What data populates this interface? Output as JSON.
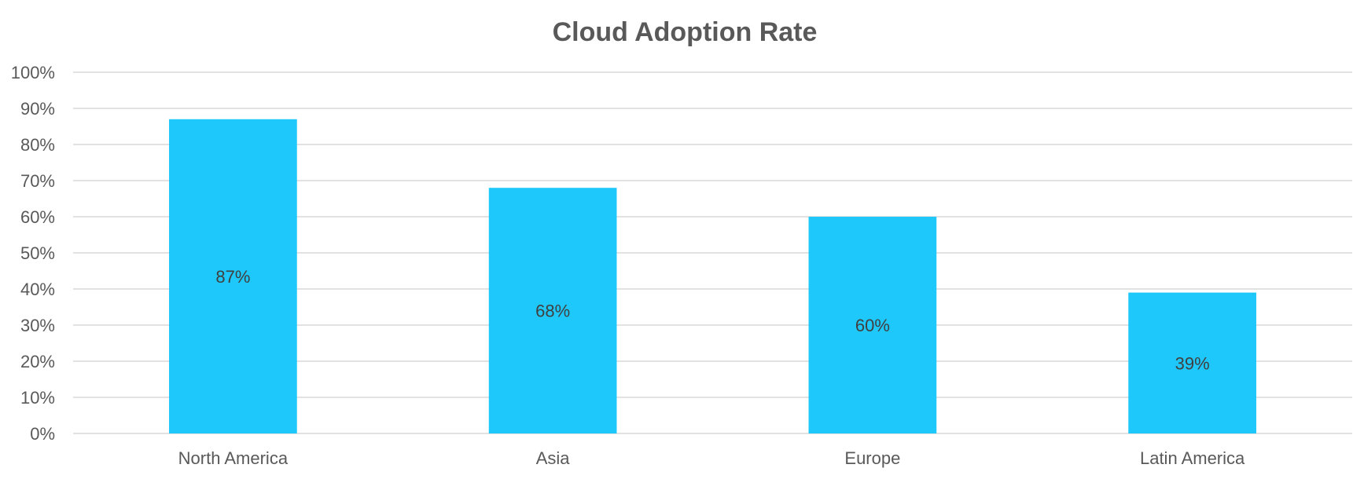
{
  "chart_data": {
    "type": "bar",
    "title": "Cloud Adoption Rate",
    "categories": [
      "North America",
      "Asia",
      "Europe",
      "Latin America"
    ],
    "values": [
      87,
      68,
      60,
      39
    ],
    "data_labels": [
      "87%",
      "68%",
      "60%",
      "39%"
    ],
    "xlabel": "",
    "ylabel": "",
    "ylim": [
      0,
      100
    ],
    "y_ticks": [
      "0%",
      "10%",
      "20%",
      "30%",
      "40%",
      "50%",
      "60%",
      "70%",
      "80%",
      "90%",
      "100%"
    ],
    "grid": true,
    "legend": "none",
    "bar_color": "#1EC8FA"
  }
}
